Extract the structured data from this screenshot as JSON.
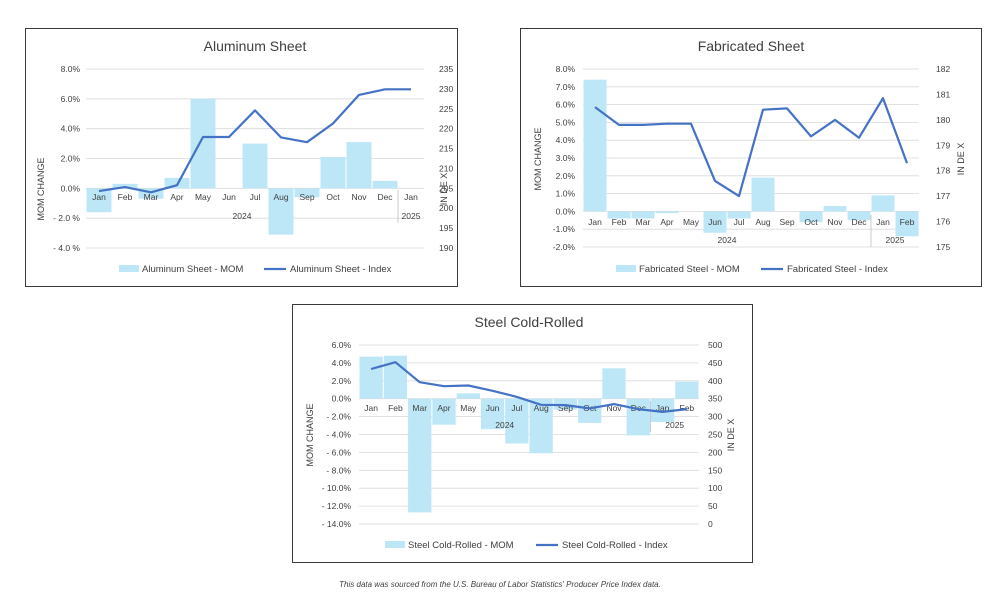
{
  "footer": {
    "source_note": "This data was sourced from the U.S. Bureau of Labor Statistics' Producer Price Index data."
  },
  "colors": {
    "bar": "#bde7f6",
    "line": "#4472c4",
    "text": "#404040",
    "grid": "#d9d9d9",
    "axis": "#bfbfbf"
  },
  "chart_data": [
    {
      "type": "bar+line",
      "title": "Aluminum Sheet",
      "ylabel": "MOM CHANGE",
      "y2label": "IN DE X",
      "categories": [
        "Jan",
        "Feb",
        "Mar",
        "Apr",
        "May",
        "Jun",
        "Jul",
        "Aug",
        "Sep",
        "Oct",
        "Nov",
        "Dec",
        "Jan"
      ],
      "year_labels": [
        {
          "label": "2024",
          "from": 0,
          "to": 11
        },
        {
          "label": "2025",
          "from": 12,
          "to": 12
        }
      ],
      "ylim": [
        -4,
        8
      ],
      "yticks": [
        8,
        6,
        4,
        2,
        0,
        -2,
        -4
      ],
      "ytick_labels": [
        "8.0%",
        "6.0%",
        "4.0%",
        "2.0%",
        "0.0%",
        "- 2.0 %",
        "- 4.0 %"
      ],
      "y2lim": [
        190,
        235
      ],
      "y2ticks": [
        235,
        230,
        225,
        220,
        215,
        210,
        205,
        200,
        195,
        190
      ],
      "y2tick_labels": [
        "235",
        "230",
        "225",
        "220",
        "215",
        "210",
        "205",
        "200",
        "195",
        "190"
      ],
      "series": [
        {
          "name": "Aluminum Sheet - MOM",
          "kind": "bar",
          "axis": "left",
          "values": [
            -1.6,
            0.3,
            -0.7,
            0.7,
            6.0,
            0.0,
            3.0,
            -3.1,
            -0.6,
            2.1,
            3.1,
            0.5,
            0.0
          ]
        },
        {
          "name": "Aluminum Sheet - Index",
          "kind": "line",
          "axis": "right",
          "values": [
            204.3,
            205.3,
            204.0,
            205.8,
            217.9,
            217.9,
            224.6,
            217.8,
            216.6,
            221.3,
            228.5,
            229.9,
            229.9
          ]
        }
      ],
      "legend": [
        "Aluminum Sheet - MOM",
        "Aluminum Sheet - Index"
      ],
      "grid": true,
      "legend_position": "bottom"
    },
    {
      "type": "bar+line",
      "title": "Fabricated Sheet",
      "ylabel": "MOM CHANGE",
      "y2label": "IN DE X",
      "categories": [
        "Jan",
        "Feb",
        "Mar",
        "Apr",
        "May",
        "Jun",
        "Jul",
        "Aug",
        "Sep",
        "Oct",
        "Nov",
        "Dec",
        "Jan",
        "Feb"
      ],
      "year_labels": [
        {
          "label": "2024",
          "from": 0,
          "to": 11
        },
        {
          "label": "2025",
          "from": 12,
          "to": 13
        }
      ],
      "ylim": [
        -2,
        8
      ],
      "yticks": [
        8,
        7,
        6,
        5,
        4,
        3,
        2,
        1,
        0,
        -1,
        -2
      ],
      "ytick_labels": [
        "8.0%",
        "7.0%",
        "6.0%",
        "5.0%",
        "4.0%",
        "3.0%",
        "2.0%",
        "1.0%",
        "0.0%",
        "-1.0%",
        "-2.0%"
      ],
      "y2lim": [
        175,
        182
      ],
      "y2ticks": [
        182,
        181,
        180,
        179,
        178,
        177,
        176,
        175
      ],
      "y2tick_labels": [
        "182",
        "181",
        "180",
        "179",
        "178",
        "177",
        "176",
        "175"
      ],
      "series": [
        {
          "name": "Fabricated Steel - MOM",
          "kind": "bar",
          "axis": "left",
          "values": [
            7.4,
            -0.4,
            -0.4,
            -0.1,
            0.0,
            -1.2,
            -0.4,
            1.9,
            0.0,
            -0.6,
            0.3,
            -0.5,
            0.9,
            -1.4
          ]
        },
        {
          "name": "Fabricated Steel - Index",
          "kind": "line",
          "axis": "right",
          "values": [
            180.5,
            179.8,
            179.8,
            179.85,
            179.85,
            177.6,
            177.0,
            180.4,
            180.45,
            179.35,
            180.0,
            179.3,
            180.85,
            178.3
          ]
        }
      ],
      "legend": [
        "Fabricated Steel - MOM",
        "Fabricated Steel - Index"
      ],
      "grid": true,
      "legend_position": "bottom"
    },
    {
      "type": "bar+line",
      "title": "Steel Cold-Rolled",
      "ylabel": "MOM CHANGE",
      "y2label": "IN DE X",
      "categories": [
        "Jan",
        "Feb",
        "Mar",
        "Apr",
        "May",
        "Jun",
        "Jul",
        "Aug",
        "Sep",
        "Oct",
        "Nov",
        "Dec",
        "Jan",
        "Feb"
      ],
      "year_labels": [
        {
          "label": "2024",
          "from": 0,
          "to": 11
        },
        {
          "label": "2025",
          "from": 12,
          "to": 13
        }
      ],
      "ylim": [
        -14,
        6
      ],
      "yticks": [
        6,
        4,
        2,
        0,
        -2,
        -4,
        -6,
        -8,
        -10,
        -12,
        -14
      ],
      "ytick_labels": [
        "6.0%",
        "4.0%",
        "2.0%",
        "0.0%",
        "- 2.0%",
        "- 4.0%",
        "- 6.0%",
        "- 8.0%",
        "- 10.0%",
        "- 12.0%",
        "- 14.0%"
      ],
      "y2lim": [
        0,
        500
      ],
      "y2ticks": [
        500,
        450,
        400,
        350,
        300,
        250,
        200,
        150,
        100,
        50,
        0
      ],
      "y2tick_labels": [
        "500",
        "450",
        "400",
        "350",
        "300",
        "250",
        "200",
        "150",
        "100",
        "50",
        "0"
      ],
      "series": [
        {
          "name": "Steel Cold-Rolled - MOM",
          "kind": "bar",
          "axis": "left",
          "values": [
            4.7,
            4.8,
            -12.7,
            -2.9,
            0.6,
            -3.4,
            -5.0,
            -6.1,
            -1.2,
            -2.7,
            3.4,
            -4.1,
            -2.6,
            1.9
          ]
        },
        {
          "name": "Steel Cold-Rolled - Index",
          "kind": "line",
          "axis": "right",
          "values": [
            433,
            452,
            396,
            385,
            387,
            372,
            355,
            333,
            332,
            323,
            335,
            321,
            313,
            321
          ]
        }
      ],
      "legend": [
        "Steel Cold-Rolled - MOM",
        "Steel Cold-Rolled - Index"
      ],
      "grid": true,
      "legend_position": "bottom"
    }
  ]
}
